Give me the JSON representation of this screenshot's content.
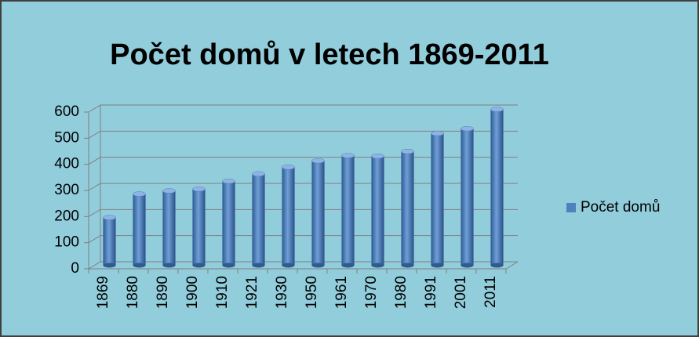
{
  "chart_data": {
    "type": "bar",
    "title": "Počet domů v letech 1869-2011",
    "categories": [
      "1869",
      "1880",
      "1890",
      "1900",
      "1910",
      "1921",
      "1930",
      "1950",
      "1961",
      "1970",
      "1980",
      "1991",
      "2001",
      "2011"
    ],
    "series": [
      {
        "name": "Počet domů",
        "color": "#4f81bd",
        "values": [
          183,
          273,
          285,
          292,
          322,
          350,
          376,
          400,
          420,
          418,
          436,
          505,
          523,
          597
        ]
      }
    ],
    "ylim": [
      0,
      600
    ],
    "yticks": [
      0,
      100,
      200,
      300,
      400,
      500,
      600
    ],
    "grid": true,
    "legend": "right"
  }
}
